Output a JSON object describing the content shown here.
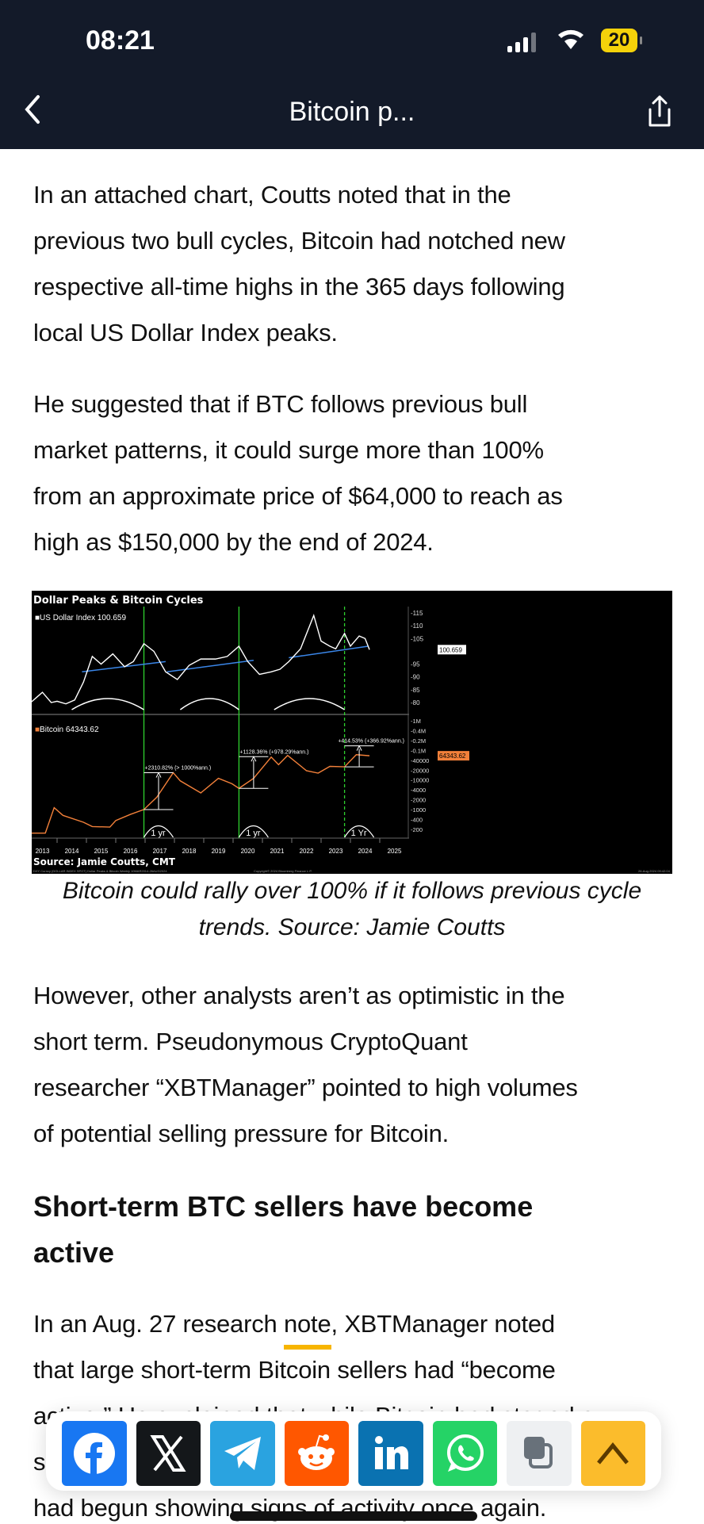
{
  "status": {
    "time": "08:21",
    "battery": "20"
  },
  "nav": {
    "title": "Bitcoin p..."
  },
  "article": {
    "p1": [
      "In an attached chart, Coutts noted that in the",
      "previous two bull cycles, Bitcoin had notched new",
      "respective all-time highs in the 365 days following",
      "local US Dollar Index peaks."
    ],
    "p2": [
      "He suggested that if BTC follows previous bull",
      "market patterns, it could surge more than 100%",
      "from an approximate price of $64,000 to reach as",
      "high as $150,000 by the end of 2024."
    ],
    "caption": [
      "Bitcoin could rally over 100% if it follows previous cycle",
      "trends. Source: Jamie Coutts"
    ],
    "p3": [
      "However, other analysts aren’t as optimistic in the",
      "short term. Pseudonymous CryptoQuant",
      "researcher “XBTManager” pointed to high volumes",
      "of potential selling pressure for Bitcoin."
    ],
    "heading": [
      "Short-term BTC sellers have become",
      "active"
    ],
    "p4_a": "In an Aug. 27 research ",
    "p4_link": "note",
    "p4_b": ", XBTManager noted",
    "p4": [
      "that large short-term Bitcoin sellers had “become",
      "active.” He explained that while Bitcoin had staged a",
      "s",
      "had begun showing signs of activity once again."
    ]
  },
  "chart_data": {
    "type": "line",
    "title": "Dollar Peaks & Bitcoin Cycles",
    "source": "Source: Jamie Coutts, CMT",
    "footnote_left": "DXY Curncy (DOLLAR INDEX SPOT) Dollar Peaks & Bitcoin  Weekly 10MAR2014-26AUG2024",
    "footnote_mid": "Copyright© 2024 Bloomberg Finance L.P.",
    "footnote_right": "26-Aug-2024 09:42:04",
    "x_ticks": [
      "2013",
      "2014",
      "2015",
      "2016",
      "2017",
      "2018",
      "2019",
      "2020",
      "2021",
      "2022",
      "2023",
      "2024",
      "2025"
    ],
    "panels": [
      {
        "legend": "US Dollar Index 100.659",
        "last": "100.659",
        "scale": "linear",
        "ylim": [
          78,
          117
        ],
        "y_ticks": [
          "115",
          "110",
          "105",
          "95",
          "90",
          "85",
          "80"
        ],
        "color": "#ffffff",
        "series": [
          [
            2013.1,
            80
          ],
          [
            2013.3,
            82
          ],
          [
            2013.5,
            84
          ],
          [
            2013.8,
            80
          ],
          [
            2014.0,
            80.5
          ],
          [
            2014.3,
            79.5
          ],
          [
            2014.6,
            81
          ],
          [
            2014.9,
            88
          ],
          [
            2015.2,
            98
          ],
          [
            2015.5,
            95
          ],
          [
            2015.9,
            99
          ],
          [
            2016.3,
            94
          ],
          [
            2016.6,
            96
          ],
          [
            2016.96,
            103
          ],
          [
            2017.3,
            100
          ],
          [
            2017.7,
            92
          ],
          [
            2018.1,
            89
          ],
          [
            2018.5,
            94.5
          ],
          [
            2018.9,
            97
          ],
          [
            2019.4,
            97
          ],
          [
            2019.8,
            98
          ],
          [
            2020.2,
            102
          ],
          [
            2020.5,
            96
          ],
          [
            2020.9,
            91
          ],
          [
            2021.3,
            92
          ],
          [
            2021.6,
            93
          ],
          [
            2021.9,
            96
          ],
          [
            2022.3,
            101
          ],
          [
            2022.75,
            114
          ],
          [
            2023.0,
            104
          ],
          [
            2023.3,
            102
          ],
          [
            2023.5,
            101
          ],
          [
            2023.8,
            107
          ],
          [
            2024.0,
            102
          ],
          [
            2024.3,
            106
          ],
          [
            2024.5,
            105
          ],
          [
            2024.65,
            100.659
          ]
        ],
        "trendlines": [
          [
            [
              2014.85,
              92
            ],
            [
              2017.7,
              96
            ]
          ],
          [
            [
              2017.75,
              92
            ],
            [
              2020.7,
              96.5
            ]
          ],
          [
            [
              2021.9,
              97.5
            ],
            [
              2024.6,
              102
            ]
          ]
        ],
        "arcs": [
          [
            2014.5,
            2016.96
          ],
          [
            2018.2,
            2020.2
          ],
          [
            2021.4,
            2023.8
          ]
        ]
      },
      {
        "legend": "Bitcoin 64343.62",
        "last": "64343.62",
        "scale": "log",
        "ylim": [
          150,
          1000000
        ],
        "y_ticks": [
          "1M",
          "0.4M",
          "0.2M",
          "0.1M",
          "40000",
          "20000",
          "10000",
          "4000",
          "2000",
          "1000",
          "400",
          "200"
        ],
        "color": "#f2803a",
        "series": [
          [
            2013.1,
            150
          ],
          [
            2013.6,
            150
          ],
          [
            2013.9,
            1100
          ],
          [
            2014.2,
            600
          ],
          [
            2014.9,
            350
          ],
          [
            2015.2,
            250
          ],
          [
            2015.8,
            240
          ],
          [
            2016.0,
            400
          ],
          [
            2016.5,
            650
          ],
          [
            2016.96,
            950
          ],
          [
            2017.4,
            2500
          ],
          [
            2017.96,
            17000
          ],
          [
            2018.2,
            9000
          ],
          [
            2018.9,
            3500
          ],
          [
            2019.5,
            11000
          ],
          [
            2019.96,
            7200
          ],
          [
            2020.2,
            5000
          ],
          [
            2020.7,
            11000
          ],
          [
            2021.3,
            58000
          ],
          [
            2021.55,
            32000
          ],
          [
            2021.86,
            66000
          ],
          [
            2022.5,
            20000
          ],
          [
            2022.9,
            16500
          ],
          [
            2023.3,
            28000
          ],
          [
            2023.8,
            27000
          ],
          [
            2024.2,
            70000
          ],
          [
            2024.65,
            64343.62
          ]
        ],
        "annotations": [
          {
            "text": "+2310.82% (> 1000%ann.)",
            "from": [
              2016.96,
              950
            ],
            "to": [
              2017.96,
              17000
            ]
          },
          {
            "text": "+1128.36% (+978.29%ann.)",
            "from": [
              2020.2,
              5000
            ],
            "to": [
              2021.2,
              60000
            ]
          },
          {
            "text": "+414.53% (+366.92%ann.)",
            "from": [
              2023.8,
              27000
            ],
            "to": [
              2024.8,
              140000
            ]
          }
        ],
        "one_year_labels": [
          "1 yr",
          "1 yr",
          "1 Yr"
        ]
      }
    ],
    "cycle_lines": [
      {
        "x": 2016.96,
        "style": "solid"
      },
      {
        "x": 2020.2,
        "style": "solid"
      },
      {
        "x": 2023.8,
        "style": "dashed"
      }
    ]
  },
  "share": [
    {
      "name": "facebook",
      "color": "#1877f2"
    },
    {
      "name": "x",
      "color": "#14171a"
    },
    {
      "name": "telegram",
      "color": "#2aa3e0"
    },
    {
      "name": "reddit",
      "color": "#ff5700"
    },
    {
      "name": "linkedin",
      "color": "#0a72b1"
    },
    {
      "name": "whatsapp",
      "color": "#25d366"
    },
    {
      "name": "copy",
      "color": "#eef0f2"
    },
    {
      "name": "scroll-top",
      "color": "#fbbc2c"
    }
  ]
}
